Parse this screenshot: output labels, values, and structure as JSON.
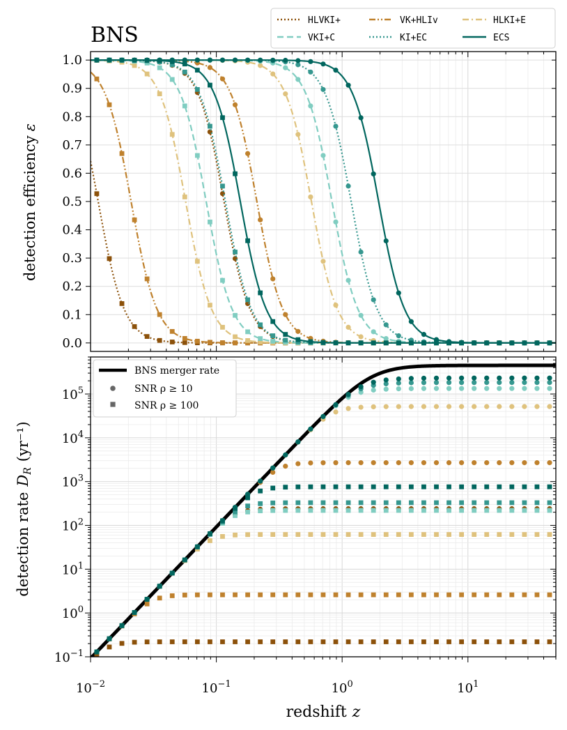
{
  "chart_data": [
    {
      "type": "line",
      "panel": "top",
      "title": "BNS",
      "xlabel": "",
      "ylabel": "detection efficiency ε",
      "xscale": "log",
      "xlim": [
        0.01,
        50
      ],
      "ylim": [
        -0.03,
        1.03
      ],
      "yticks": [
        "0.0",
        "0.1",
        "0.2",
        "0.3",
        "0.4",
        "0.5",
        "0.6",
        "0.7",
        "0.8",
        "0.9",
        "1.0"
      ],
      "grid": true,
      "legend_position": "above-right",
      "series": [
        {
          "name": "HLVKI+",
          "color": "#8c510a",
          "style": "dotted",
          "z50_snr10": 0.115,
          "z50_snr100": 0.0115
        },
        {
          "name": "VK+HLIv",
          "color": "#bf812d",
          "style": "dashdotdot",
          "z50_snr10": 0.21,
          "z50_snr100": 0.021
        },
        {
          "name": "HLKI+E",
          "color": "#dfc27d",
          "style": "dashdot",
          "z50_snr10": 0.57,
          "z50_snr100": 0.057
        },
        {
          "name": "VKI+C",
          "color": "#80cdc1",
          "style": "dashed",
          "z50_snr10": 0.83,
          "z50_snr100": 0.083
        },
        {
          "name": "KI+EC",
          "color": "#35978f",
          "style": "dotted",
          "z50_snr10": 1.18,
          "z50_snr100": 0.118
        },
        {
          "name": "ECS",
          "color": "#01665e",
          "style": "solid",
          "z50_snr10": 1.95,
          "z50_snr100": 0.155
        }
      ],
      "marker_legend": {
        "snr10": "circle",
        "snr100": "square"
      }
    },
    {
      "type": "scatter",
      "panel": "bottom",
      "xlabel": "redshift z",
      "ylabel": "detection rate D_R (yr⁻¹)",
      "xscale": "log",
      "yscale": "log",
      "xlim": [
        0.01,
        50
      ],
      "ylim": [
        0.1,
        700000
      ],
      "xticks": [
        "10^-2",
        "10^-1",
        "10^0",
        "10^1"
      ],
      "yticks": [
        "10^-1",
        "10^0",
        "10^1",
        "10^2",
        "10^3",
        "10^4",
        "10^5"
      ],
      "grid": true,
      "legend": [
        {
          "label": "BNS merger rate",
          "marker": "line"
        },
        {
          "label": "SNR ρ ≥ 10",
          "marker": "circle"
        },
        {
          "label": "SNR ρ ≥ 100",
          "marker": "square"
        }
      ],
      "legend_position": "top-left",
      "merger_rate": {
        "low_z_value_at_0.01": 0.092,
        "plateau": 450000
      },
      "plateaus": [
        {
          "name": "HLVKI+",
          "snr10": 240,
          "snr100": 0.22
        },
        {
          "name": "VK+HLIv",
          "snr10": 2700,
          "snr100": 2.6
        },
        {
          "name": "HLKI+E",
          "snr10": 52000,
          "snr100": 62
        },
        {
          "name": "VKI+C",
          "snr10": 140000,
          "snr100": 220
        },
        {
          "name": "KI+EC",
          "snr10": 200000,
          "snr100": 330
        },
        {
          "name": "ECS",
          "snr10": 270000,
          "snr100": 760
        }
      ]
    }
  ],
  "text": {
    "title": "BNS",
    "legend_labels": [
      "HLVKI+",
      "VK+HLIv",
      "HLKI+E",
      "VKI+C",
      "KI+EC",
      "ECS"
    ],
    "bottom_legend": [
      "BNS merger rate",
      "SNR ρ ≥ 10",
      "SNR ρ ≥ 100"
    ],
    "top_ylabel_main": "detection efficiency",
    "top_ylabel_symbol": "ε",
    "bottom_ylabel_main": "detection rate",
    "bottom_ylabel_symbol": "D",
    "bottom_ylabel_sub": "R",
    "bottom_ylabel_unit": "(yr⁻¹)",
    "xlabel_main": "redshift",
    "xlabel_symbol": "z"
  }
}
